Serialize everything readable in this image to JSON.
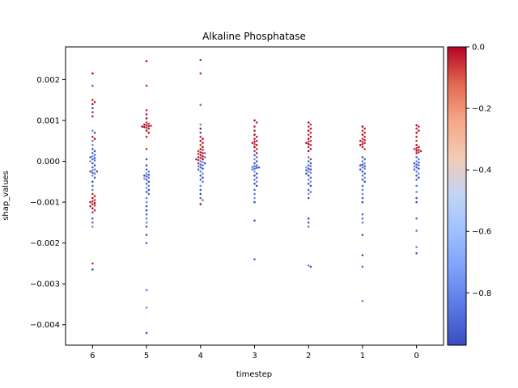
{
  "chart_data": {
    "type": "scatter",
    "title": "Alkaline Phosphatase",
    "xlabel": "timestep",
    "ylabel": "shap_values",
    "categories": [
      "6",
      "5",
      "4",
      "3",
      "2",
      "1",
      "0"
    ],
    "ylim": [
      -0.0045,
      0.0028
    ],
    "yticks": [
      0.002,
      0.001,
      0.0,
      -0.001,
      -0.002,
      -0.003,
      -0.004
    ],
    "ytick_labels": [
      "0.002",
      "0.001",
      "0.000",
      "−0.001",
      "−0.002",
      "−0.003",
      "−0.004"
    ],
    "grid": false,
    "colorbar": {
      "colormap": "coolwarm",
      "range": [
        -0.97,
        0.0
      ],
      "ticks": [
        0.0,
        -0.2,
        -0.4,
        -0.6,
        -0.8
      ],
      "tick_labels": [
        "0.0",
        "−0.2",
        "−0.4",
        "−0.6",
        "−0.8"
      ]
    },
    "series": [
      {
        "category": "6",
        "high": [
          0.00215,
          0.0015,
          0.00145,
          0.0014,
          0.0012,
          0.0011,
          0.0006,
          0.00055,
          -0.0008,
          -0.00085,
          -0.0009,
          -0.00095,
          -0.00098,
          -0.001,
          -0.00102,
          -0.00105,
          -0.00108,
          -0.0011,
          -0.00115,
          -0.0012,
          -0.00125,
          -0.00025,
          -0.0025
        ],
        "low": [
          0.00185,
          0.0013,
          0.00075,
          0.0007,
          0.0005,
          0.0004,
          0.0003,
          0.00025,
          0.0002,
          0.00015,
          0.00012,
          0.0001,
          8e-05,
          5e-05,
          2e-05,
          0.0,
          -5e-05,
          -0.0001,
          -0.00015,
          -0.0002,
          -0.00022,
          -0.00025,
          -0.00028,
          -0.0003,
          -0.00035,
          -0.0004,
          -0.0005,
          -0.0006,
          -0.0007,
          -0.0014,
          -0.0015,
          -0.0016,
          -0.00265
        ]
      },
      {
        "category": "5",
        "high": [
          0.00245,
          0.00185,
          0.00125,
          0.00115,
          0.00105,
          0.00095,
          0.00092,
          0.0009,
          0.00088,
          0.00087,
          0.00086,
          0.00085,
          0.00084,
          0.00082,
          0.0008,
          0.00075,
          0.0007,
          0.0006,
          0.0003
        ],
        "low": [
          5e-05,
          -0.0001,
          -0.0002,
          -0.00025,
          -0.0003,
          -0.00033,
          -0.00035,
          -0.00037,
          -0.0004,
          -0.00042,
          -0.00045,
          -0.0005,
          -0.00055,
          -0.0006,
          -0.00065,
          -0.0007,
          -0.00075,
          -0.0008,
          -0.0009,
          -0.001,
          -0.0011,
          -0.0012,
          -0.0013,
          -0.0014,
          -0.0015,
          -0.0016,
          -0.0018,
          -0.002,
          -0.00315,
          -0.00358,
          -0.0042
        ]
      },
      {
        "category": "4",
        "high": [
          0.00215,
          0.0008,
          0.0006,
          0.00055,
          0.0005,
          0.00045,
          0.0004,
          0.00035,
          0.0003,
          0.00028,
          0.00025,
          0.00022,
          0.0002,
          0.00018,
          0.00015,
          0.00012,
          0.0001,
          8e-05,
          5e-05,
          3e-05,
          -5e-05,
          -0.00105
        ],
        "low": [
          0.00248,
          0.00138,
          0.0009,
          0.0007,
          0.0002,
          0.0001,
          5e-05,
          0.0,
          -2e-05,
          -5e-05,
          -8e-05,
          -0.0001,
          -0.00012,
          -0.00015,
          -0.00018,
          -0.0002,
          -0.00025,
          -0.0003,
          -0.00035,
          -0.0004,
          -0.00045,
          -0.0005,
          -0.0006,
          -0.0007,
          -0.0008,
          -0.0009,
          -0.00095
        ]
      },
      {
        "category": "3",
        "high": [
          0.001,
          0.00095,
          0.00085,
          0.00075,
          0.00065,
          0.0006,
          0.00055,
          0.0005,
          0.00048,
          0.00045,
          0.00042,
          0.0004,
          0.00035,
          0.0003,
          0.00025,
          0.0002
        ],
        "low": [
          0.00015,
          0.0001,
          5e-05,
          0.0,
          -5e-05,
          -0.0001,
          -0.00012,
          -0.00014,
          -0.00015,
          -0.00016,
          -0.00018,
          -0.0002,
          -0.00025,
          -0.0003,
          -0.00035,
          -0.0004,
          -0.00045,
          -0.0005,
          -0.00055,
          -0.0006,
          -0.0007,
          -0.0008,
          -0.0009,
          -0.001,
          -0.00145,
          -0.0024
        ]
      },
      {
        "category": "2",
        "high": [
          0.00095,
          0.0009,
          0.00085,
          0.0008,
          0.00075,
          0.0007,
          0.00065,
          0.0006,
          0.00055,
          0.0005,
          0.00048,
          0.00045,
          0.00042,
          0.0004,
          0.00035,
          0.0003,
          0.00025,
          5e-05
        ],
        "low": [
          0.0001,
          0.0,
          -5e-05,
          -0.0001,
          -0.00012,
          -0.00015,
          -0.00018,
          -0.0002,
          -0.00022,
          -0.00025,
          -0.00028,
          -0.0003,
          -0.00035,
          -0.0004,
          -0.00045,
          -0.0005,
          -0.00055,
          -0.0006,
          -0.0007,
          -0.00075,
          -0.0008,
          -0.0009,
          -0.0014,
          -0.0015,
          -0.0016,
          -0.00255,
          -0.00258
        ]
      },
      {
        "category": "1",
        "high": [
          0.00085,
          0.0008,
          0.00075,
          0.0007,
          0.00065,
          0.0006,
          0.00055,
          0.00052,
          0.0005,
          0.00048,
          0.00045,
          0.00042,
          0.0004,
          0.00035,
          0.0003
        ],
        "low": [
          0.0001,
          5e-05,
          0.0,
          -5e-05,
          -8e-05,
          -0.0001,
          -0.00012,
          -0.00015,
          -0.00018,
          -0.0002,
          -0.00025,
          -0.0003,
          -0.00035,
          -0.0004,
          -0.00045,
          -0.0005,
          -0.0006,
          -0.0007,
          -0.0008,
          -0.0009,
          -0.001,
          -0.0013,
          -0.0014,
          -0.0015,
          -0.0018,
          -0.0023,
          -0.00258,
          -0.00342
        ]
      },
      {
        "category": "0",
        "high": [
          0.00088,
          0.00085,
          0.0008,
          0.00075,
          0.0007,
          0.0006,
          0.0005,
          0.0004,
          0.00035,
          0.00032,
          0.0003,
          0.00028,
          0.00026,
          0.00025,
          0.00022,
          0.0002
        ],
        "low": [
          0.0001,
          5e-05,
          0.0,
          -3e-05,
          -5e-05,
          -8e-05,
          -0.0001,
          -0.00012,
          -0.00015,
          -0.00018,
          -0.0002,
          -0.00025,
          -0.0003,
          -0.00035,
          -0.0004,
          -0.00045,
          -0.0006,
          -0.00075,
          -0.0009,
          -0.001,
          -0.0014,
          -0.0017,
          -0.0021,
          -0.00225
        ]
      }
    ]
  }
}
